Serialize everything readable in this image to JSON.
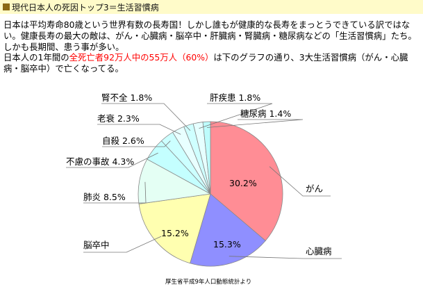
{
  "header": {
    "title": "現代日本人の死因トップ3＝生活習慣病",
    "accent_color": "#8b6914",
    "bar_color": "#fffbc9"
  },
  "body": {
    "paragraph1": "日本は平均寿命80歳という世界有数の長寿国！しかし誰もが健康的な長寿をまっとうできている訳ではない。健康長寿の最大の敵は、がん・心臓病・脳卒中・肝臓病・腎臓病・糖尿病などの「生活習慣病」たち。しかも長期間、患う事が多い。",
    "p2_before": "日本人の1年間の",
    "p2_highlight": "全死亡者92万人中の55万人（60%）",
    "p2_after": "は下のグラフの通り、3大生活習慣病（がん・心臓病・脳卒中）で亡くなってる。"
  },
  "chart_data": {
    "type": "pie",
    "title": "",
    "source": "厚生省平成9年人口動態統計より",
    "slices": [
      {
        "name": "がん",
        "value": 30.2,
        "label": "30.2%",
        "color": "#ff8d95"
      },
      {
        "name": "心臓病",
        "value": 15.3,
        "label": "15.3%",
        "color": "#8f8fff"
      },
      {
        "name": "脳卒中",
        "value": 15.2,
        "label": "15.2%",
        "color": "#ffffb0"
      },
      {
        "name": "肺炎",
        "value": 8.5,
        "label": "8.5%",
        "color": "#e4fff4"
      },
      {
        "name": "不慮の事故",
        "value": 4.3,
        "label": "4.3%",
        "color": "#c4ffff"
      },
      {
        "name": "自殺",
        "value": 2.6,
        "label": "2.6%",
        "color": "#ccffff"
      },
      {
        "name": "老衰",
        "value": 2.3,
        "label": "2.3%",
        "color": "#e8ffff"
      },
      {
        "name": "腎不全",
        "value": 1.8,
        "label": "1.8%",
        "color": "#cfffff"
      },
      {
        "name": "肝疾患",
        "value": 1.8,
        "label": "1.8%",
        "color": "#e6ffff"
      },
      {
        "name": "糖尿病",
        "value": 1.4,
        "label": "1.4%",
        "color": "#bdfcfc"
      }
    ]
  }
}
